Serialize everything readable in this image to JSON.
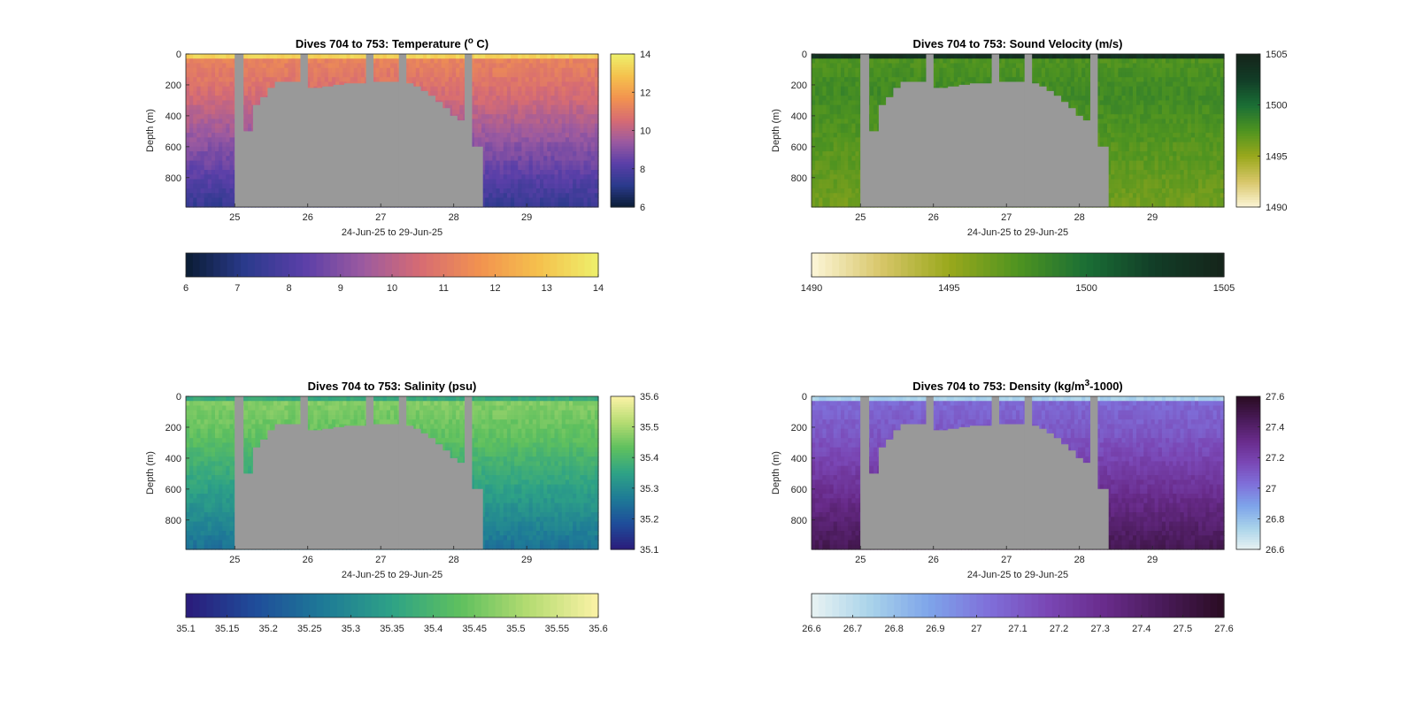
{
  "figure": {
    "background": "#ffffff",
    "mask_color": "#999999"
  },
  "chart_data": [
    {
      "id": "temperature",
      "type": "heatmap",
      "title": "Dives 704 to 753: Temperature (",
      "title_sup": "o",
      "title_tail": " C)",
      "xlabel": "24-Jun-25 to 29-Jun-25",
      "ylabel": "Depth (m)",
      "xlim": [
        24.33,
        29.98
      ],
      "ylim": [
        0,
        990
      ],
      "xticks": [
        25,
        26,
        27,
        28,
        29
      ],
      "yticks": [
        0,
        200,
        400,
        600,
        800
      ],
      "clim": [
        6,
        14
      ],
      "cbar_ticks_right": [
        6,
        8,
        10,
        12,
        14
      ],
      "cbar_ticks_bottom": [
        6,
        7,
        8,
        9,
        10,
        11,
        12,
        13,
        14
      ],
      "colormap": [
        "#0a1c33",
        "#2a3a8c",
        "#5a3fa8",
        "#9b5aa0",
        "#d76c72",
        "#f2934f",
        "#f5c14d",
        "#eef06b"
      ],
      "profile": {
        "surface": 13.3,
        "near": 11.3,
        "mid": 9.3,
        "deep": 7.4
      }
    },
    {
      "id": "sound-velocity",
      "type": "heatmap",
      "title": "Dives 704 to 753: Sound Velocity (m/s)",
      "xlabel": "24-Jun-25 to 29-Jun-25",
      "ylabel": "Depth (m)",
      "xlim": [
        24.33,
        29.98
      ],
      "ylim": [
        0,
        990
      ],
      "xticks": [
        25,
        26,
        27,
        28,
        29
      ],
      "yticks": [
        0,
        200,
        400,
        600,
        800
      ],
      "clim": [
        1490,
        1505
      ],
      "cbar_ticks_right": [
        1490,
        1495,
        1500,
        1505
      ],
      "cbar_ticks_bottom": [
        1490,
        1495,
        1500,
        1505
      ],
      "colormap": [
        "#fdf6d8",
        "#d8c76a",
        "#9aa81c",
        "#4f9420",
        "#1a6e35",
        "#123d27",
        "#15241a"
      ],
      "profile": {
        "surface": 1503.8,
        "near": 1497.5,
        "mid": 1499.4,
        "deep": 1496.3
      }
    },
    {
      "id": "salinity",
      "type": "heatmap",
      "title": "Dives 704 to 753: Salinity (psu)",
      "xlabel": "24-Jun-25 to 29-Jun-25",
      "ylabel": "Depth (m)",
      "xlim": [
        24.33,
        29.98
      ],
      "ylim": [
        0,
        990
      ],
      "xticks": [
        25,
        26,
        27,
        28,
        29
      ],
      "yticks": [
        0,
        200,
        400,
        600,
        800
      ],
      "clim": [
        35.1,
        35.6
      ],
      "cbar_ticks_right": [
        35.1,
        35.2,
        35.3,
        35.4,
        35.5,
        35.6
      ],
      "cbar_ticks_bottom": [
        35.1,
        35.15,
        35.2,
        35.25,
        35.3,
        35.35,
        35.4,
        35.45,
        35.5,
        35.55,
        35.6
      ],
      "colormap": [
        "#2b1b7a",
        "#1f4c9a",
        "#1e7a97",
        "#2ea286",
        "#5fc05e",
        "#b6dc72",
        "#fbf2a6"
      ],
      "profile": {
        "surface": 35.37,
        "near": 35.47,
        "mid": 35.37,
        "deep": 35.25
      }
    },
    {
      "id": "density",
      "type": "heatmap",
      "title": "Dives 704 to 753: Density (kg/m",
      "title_sup": "3",
      "title_tail": "-1000)",
      "xlabel": "24-Jun-25 to 29-Jun-25",
      "ylabel": "Depth (m)",
      "xlim": [
        24.33,
        29.98
      ],
      "ylim": [
        0,
        990
      ],
      "xticks": [
        25,
        26,
        27,
        28,
        29
      ],
      "yticks": [
        0,
        200,
        400,
        600,
        800
      ],
      "clim": [
        26.6,
        27.6
      ],
      "cbar_ticks_right": [
        26.6,
        26.8,
        27,
        27.2,
        27.4,
        27.6
      ],
      "cbar_ticks_bottom": [
        26.6,
        26.7,
        26.8,
        26.9,
        27,
        27.1,
        27.2,
        27.3,
        27.4,
        27.5,
        27.6
      ],
      "colormap": [
        "#e9f3f2",
        "#a9d3ea",
        "#7ea4ea",
        "#7f70da",
        "#7a47b5",
        "#682b8a",
        "#481a57",
        "#2a0c22"
      ],
      "profile": {
        "surface": 26.75,
        "near": 27.05,
        "mid": 27.23,
        "deep": 27.47
      }
    }
  ],
  "gaps": [
    {
      "x0": 25.0,
      "x1": 25.12
    },
    {
      "x0": 25.9,
      "x1": 26.0
    },
    {
      "x0": 26.8,
      "x1": 26.9
    },
    {
      "x0": 27.25,
      "x1": 27.35
    },
    {
      "x0": 28.15,
      "x1": 28.25
    }
  ],
  "mask": {
    "x0": 25.0,
    "x1": 28.4,
    "bottom_depth": [
      [
        25.0,
        0
      ],
      [
        25.12,
        500
      ],
      [
        25.25,
        500
      ],
      [
        25.25,
        330
      ],
      [
        25.35,
        330
      ],
      [
        25.35,
        280
      ],
      [
        25.45,
        280
      ],
      [
        25.45,
        220
      ],
      [
        25.55,
        220
      ],
      [
        25.55,
        180
      ],
      [
        25.9,
        180
      ],
      [
        25.9,
        0
      ],
      [
        26.0,
        0
      ],
      [
        26.0,
        220
      ],
      [
        26.2,
        220
      ],
      [
        26.2,
        210
      ],
      [
        26.35,
        210
      ],
      [
        26.35,
        200
      ],
      [
        26.5,
        200
      ],
      [
        26.5,
        190
      ],
      [
        26.8,
        190
      ],
      [
        26.8,
        0
      ],
      [
        26.9,
        0
      ],
      [
        26.9,
        180
      ],
      [
        27.25,
        180
      ],
      [
        27.25,
        0
      ],
      [
        27.35,
        0
      ],
      [
        27.35,
        190
      ],
      [
        27.45,
        190
      ],
      [
        27.45,
        210
      ],
      [
        27.55,
        210
      ],
      [
        27.55,
        240
      ],
      [
        27.65,
        240
      ],
      [
        27.65,
        270
      ],
      [
        27.75,
        270
      ],
      [
        27.75,
        310
      ],
      [
        27.85,
        310
      ],
      [
        27.85,
        350
      ],
      [
        27.95,
        350
      ],
      [
        27.95,
        400
      ],
      [
        28.05,
        400
      ],
      [
        28.05,
        430
      ],
      [
        28.15,
        430
      ],
      [
        28.15,
        0
      ],
      [
        28.25,
        0
      ],
      [
        28.25,
        600
      ],
      [
        28.4,
        600
      ],
      [
        28.4,
        990
      ]
    ]
  }
}
